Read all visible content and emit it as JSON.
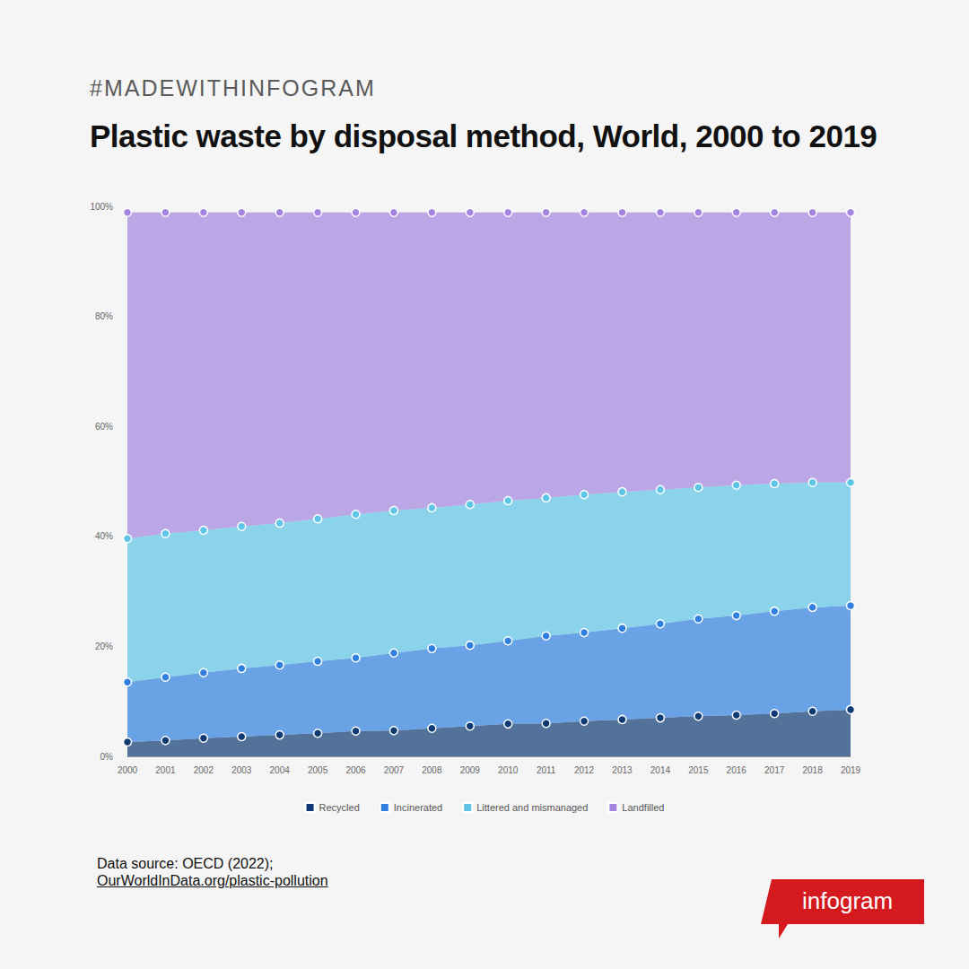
{
  "chart_data": {
    "type": "area",
    "title": "Plastic waste by disposal method, World, 2000 to 2019",
    "annotations": [
      "#MADEWITHINFOGRAM",
      "Data source: OECD (2022);",
      "OurWorldInData.org/plastic-pollution",
      "infogram"
    ],
    "categories": [
      "2000",
      "2001",
      "2002",
      "2003",
      "2004",
      "2005",
      "2006",
      "2007",
      "2008",
      "2009",
      "2010",
      "2011",
      "2012",
      "2013",
      "2014",
      "2015",
      "2016",
      "2017",
      "2018",
      "2019"
    ],
    "series": [
      {
        "name": "Recycled",
        "color": "#0d3a73",
        "values": [
          2.6,
          2.9,
          3.3,
          3.6,
          3.9,
          4.2,
          4.6,
          4.7,
          5.1,
          5.5,
          5.9,
          6.0,
          6.4,
          6.7,
          7.0,
          7.3,
          7.5,
          7.8,
          8.2,
          8.5
        ]
      },
      {
        "name": "Incinerated",
        "color": "#2f7fe0",
        "values": [
          10.9,
          11.5,
          11.9,
          12.4,
          12.7,
          13.1,
          13.3,
          14.1,
          14.5,
          14.7,
          15.1,
          15.9,
          16.1,
          16.6,
          17.1,
          17.7,
          18.1,
          18.6,
          18.9,
          18.9
        ]
      },
      {
        "name": "Littered and mismanaged",
        "color": "#5ec5e6",
        "values": [
          26.1,
          26.1,
          25.9,
          25.8,
          25.8,
          25.9,
          26.1,
          25.9,
          25.6,
          25.6,
          25.5,
          25.1,
          25.1,
          24.8,
          24.4,
          23.9,
          23.7,
          23.2,
          22.7,
          22.4
        ]
      },
      {
        "name": "Landfilled",
        "color": "#a385df",
        "values": [
          59.3,
          58.4,
          57.8,
          57.1,
          56.5,
          55.7,
          54.9,
          54.2,
          53.7,
          53.1,
          52.4,
          51.9,
          51.3,
          50.8,
          50.4,
          50.0,
          49.6,
          49.3,
          49.1,
          49.1
        ]
      }
    ],
    "ylim": [
      0,
      100
    ],
    "yticks": [
      {
        "value": 0,
        "label": "0%"
      },
      {
        "value": 20,
        "label": "20%"
      },
      {
        "value": 40,
        "label": "40%"
      },
      {
        "value": 60,
        "label": "60%"
      },
      {
        "value": 80,
        "label": "80%"
      },
      {
        "value": 100,
        "label": "100%"
      }
    ],
    "stacked": true,
    "grid": false,
    "legend": "bottom",
    "marker": "circle",
    "data_labels": false
  }
}
